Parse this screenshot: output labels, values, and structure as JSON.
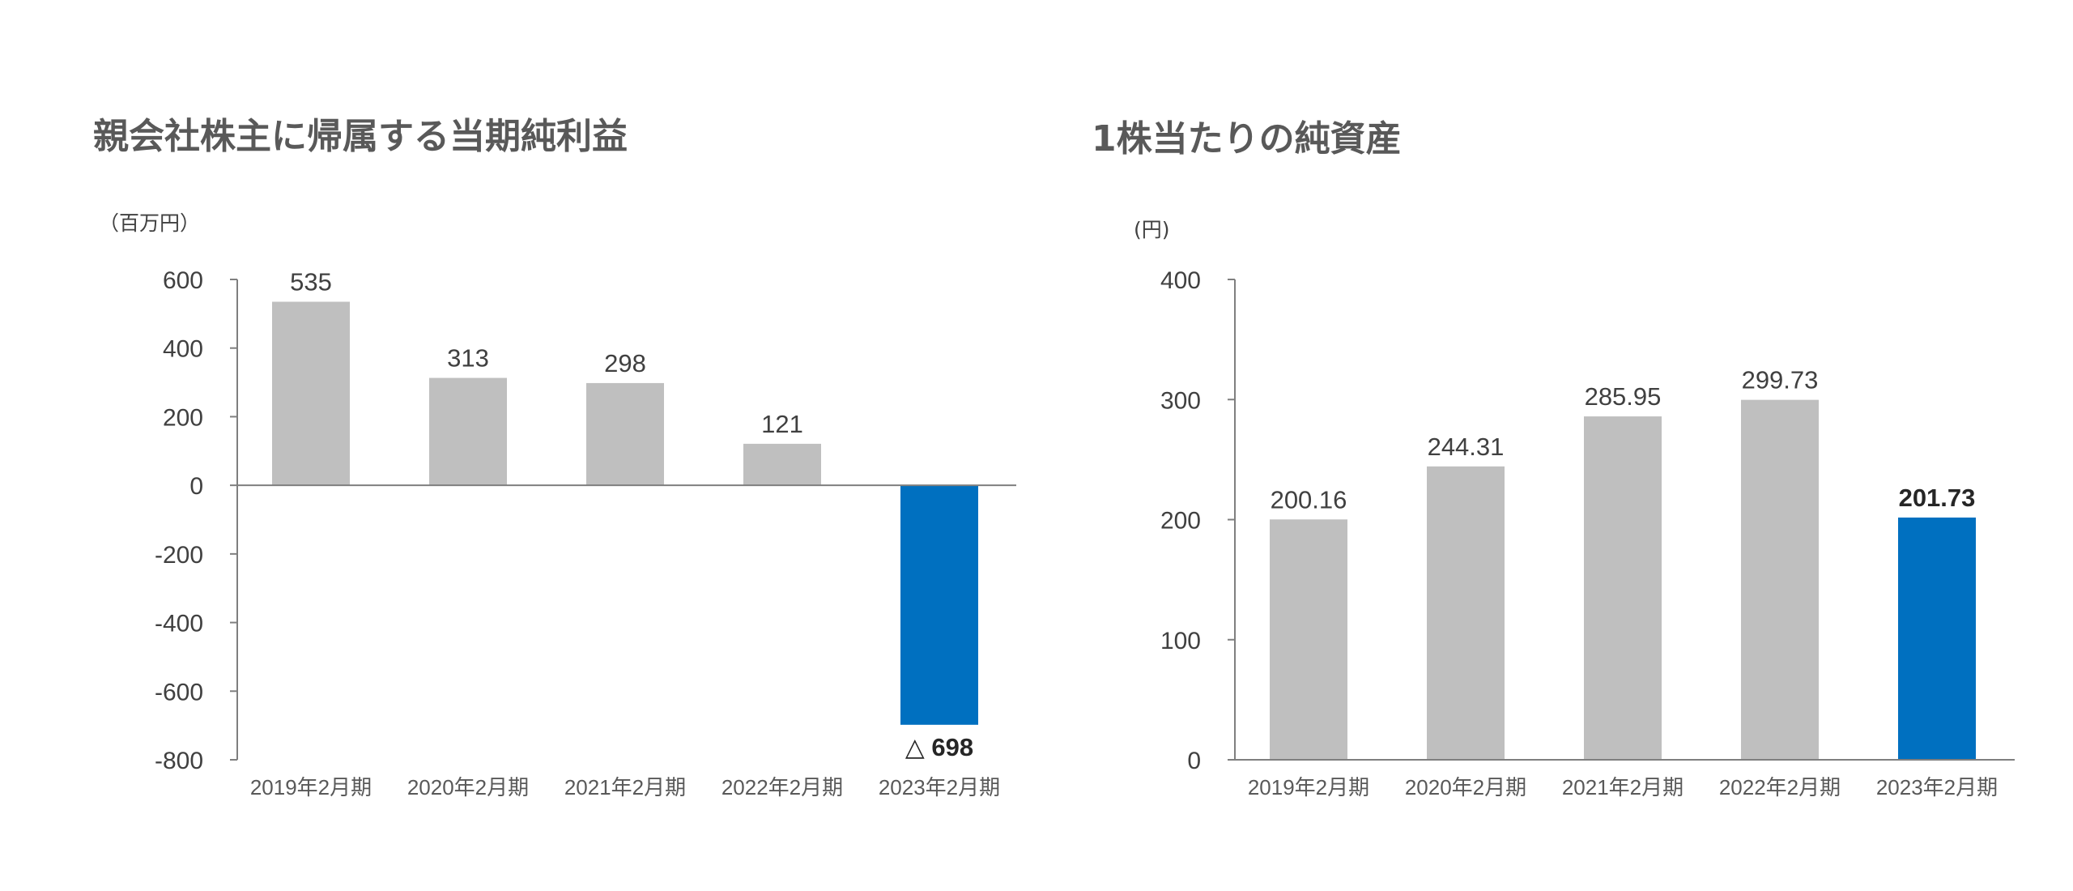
{
  "colors": {
    "bar_default": "#bfbfbf",
    "bar_highlight": "#0070c0",
    "axis": "#7f7f7f",
    "text": "#404040",
    "title": "#595959"
  },
  "chart_data": [
    {
      "type": "bar",
      "title": "親会社株主に帰属する当期純利益",
      "unit": "（百万円）",
      "categories": [
        "2019年2月期",
        "2020年2月期",
        "2021年2月期",
        "2022年2月期",
        "2023年2月期"
      ],
      "values": [
        535,
        313,
        298,
        121,
        -698
      ],
      "data_labels": [
        "535",
        "313",
        "298",
        "121",
        "△ 698"
      ],
      "highlight_index": 4,
      "ylim": [
        -800,
        600
      ],
      "yticks": [
        600,
        400,
        200,
        0,
        -200,
        -400,
        -600,
        -800
      ],
      "ytick_labels": [
        "600",
        "400",
        "200",
        "0",
        "-200",
        "-400",
        "-600",
        "-800"
      ],
      "grid": false,
      "legend": "none"
    },
    {
      "type": "bar",
      "title": "1株当たりの純資産",
      "unit": "(円)",
      "categories": [
        "2019年2月期",
        "2020年2月期",
        "2021年2月期",
        "2022年2月期",
        "2023年2月期"
      ],
      "values": [
        200.16,
        244.31,
        285.95,
        299.73,
        201.73
      ],
      "data_labels": [
        "200.16",
        "244.31",
        "285.95",
        "299.73",
        "201.73"
      ],
      "highlight_index": 4,
      "ylim": [
        0,
        400
      ],
      "yticks": [
        400,
        300,
        200,
        100,
        0
      ],
      "ytick_labels": [
        "400",
        "300",
        "200",
        "100",
        "0"
      ],
      "grid": false,
      "legend": "none"
    }
  ]
}
